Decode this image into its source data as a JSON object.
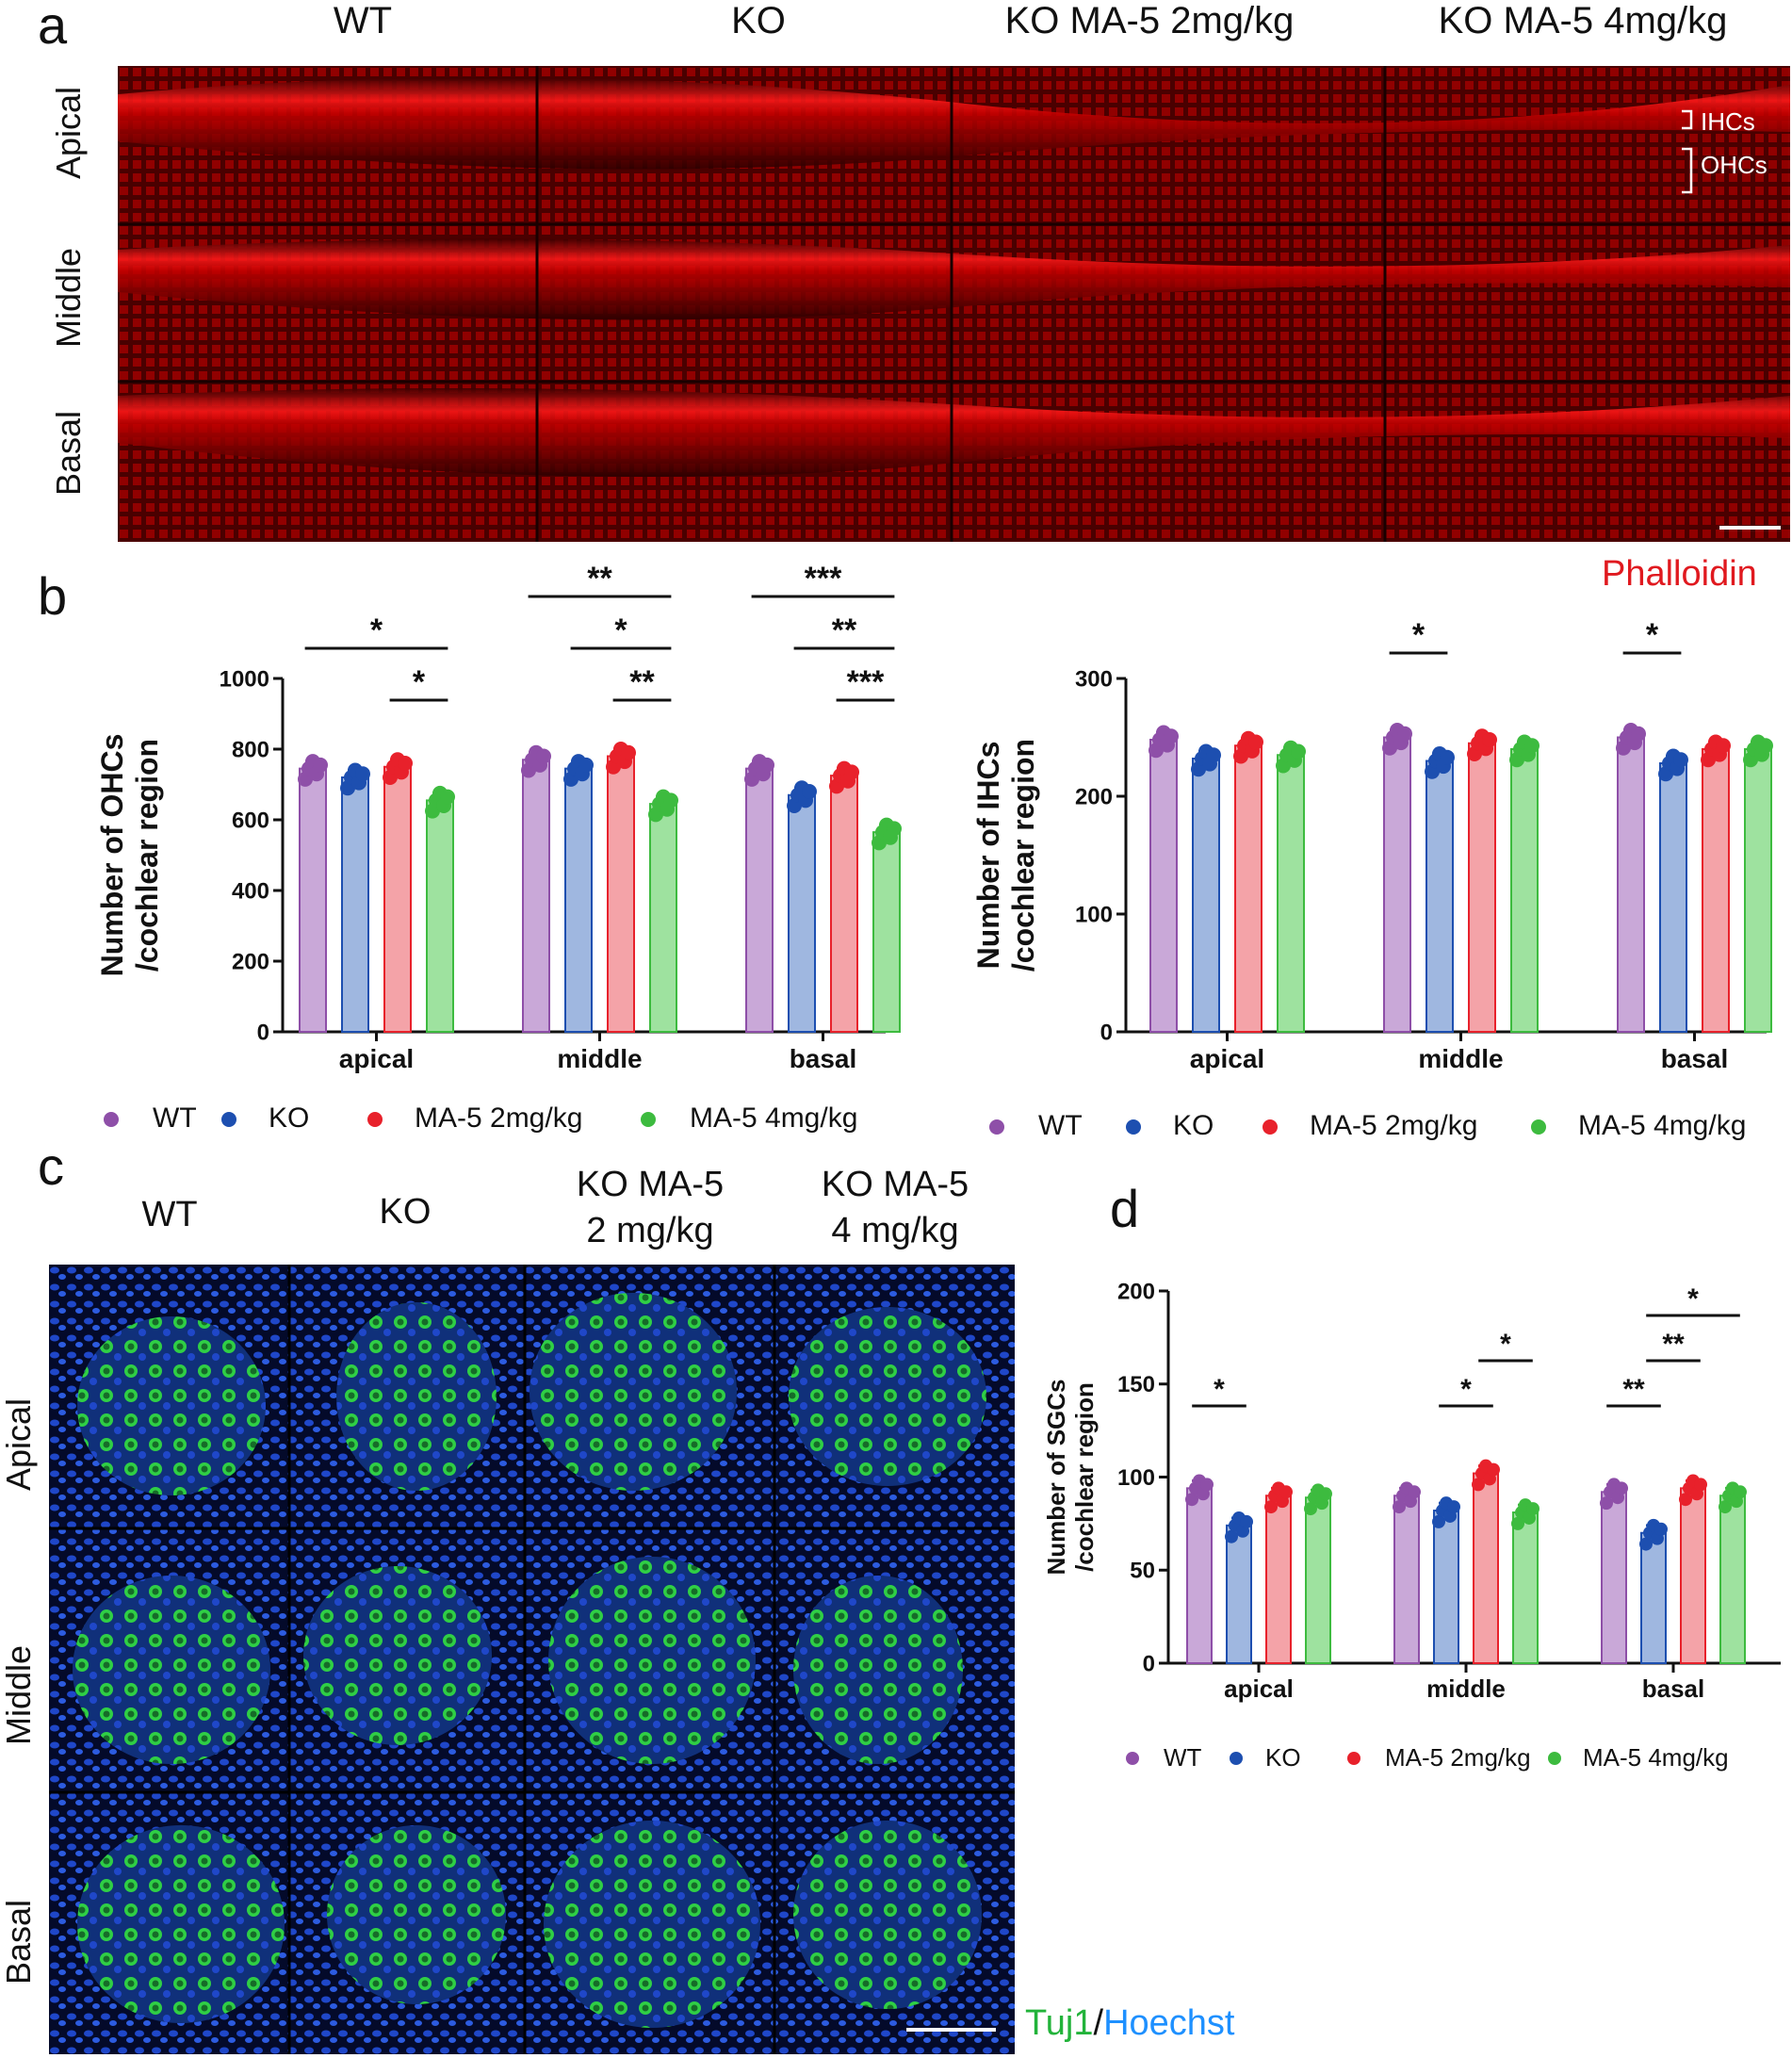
{
  "colors": {
    "WT": "#8e4fa8",
    "KO": "#1d4fb0",
    "MA5_2": "#e8212b",
    "MA5_4": "#3dbb3f",
    "WT_bar": "#c9a8d8",
    "KO_bar": "#9fb7e0",
    "MA5_2_bar": "#f4a3a8",
    "MA5_4_bar": "#9ee29f",
    "phalloidin": "#e0191f",
    "tuj1": "#22b33a",
    "hoechst": "#1e90ff"
  },
  "panel_a": {
    "letter": "a",
    "columns": [
      "WT",
      "KO",
      "KO MA-5 2mg/kg",
      "KO MA-5 4mg/kg"
    ],
    "rows": [
      "Apical",
      "Middle",
      "Basal"
    ],
    "annotations": [
      "IHCs",
      "OHCs"
    ],
    "stain": "Phalloidin"
  },
  "panel_b": {
    "letter": "b",
    "legend_left": [
      "WT",
      "KO",
      "MA-5 2mg/kg",
      "MA-5 4mg/kg"
    ],
    "legend_right": [
      "WT",
      "KO",
      "MA-5 2mg/kg",
      "MA-5 4mg/kg"
    ]
  },
  "panel_c": {
    "letter": "c",
    "columns": [
      "WT",
      "KO",
      "KO MA-5",
      "KO MA-5"
    ],
    "columns_line2": [
      "",
      "",
      "2 mg/kg",
      "4 mg/kg"
    ],
    "rows": [
      "Apical",
      "Middle",
      "Basal"
    ],
    "stain_green": "Tuj1",
    "stain_sep": "/",
    "stain_blue": "Hoechst"
  },
  "panel_d": {
    "letter": "d",
    "legend": [
      "WT",
      "KO",
      "MA-5 2mg/kg",
      "MA-5 4mg/kg"
    ]
  },
  "chart_data": [
    {
      "id": "ohc",
      "type": "bar",
      "ylabel": [
        "Number of OHCs",
        "/cochlear region"
      ],
      "ylim": [
        0,
        1000
      ],
      "yticks": [
        0,
        200,
        400,
        600,
        800,
        1000
      ],
      "categories": [
        "apical",
        "middle",
        "basal"
      ],
      "series": [
        {
          "name": "WT",
          "values": [
            745,
            770,
            745
          ]
        },
        {
          "name": "KO",
          "values": [
            720,
            745,
            670
          ]
        },
        {
          "name": "MA-5 2mg/kg",
          "values": [
            750,
            780,
            725
          ]
        },
        {
          "name": "MA-5 4mg/kg",
          "values": [
            655,
            645,
            565
          ]
        }
      ],
      "significance": [
        {
          "group": 0,
          "from": 2,
          "to": 3,
          "label": "*"
        },
        {
          "group": 0,
          "from": 0,
          "to": 3,
          "label": "*"
        },
        {
          "group": 1,
          "from": 2,
          "to": 3,
          "label": "**"
        },
        {
          "group": 1,
          "from": 1,
          "to": 3,
          "label": "*"
        },
        {
          "group": 1,
          "from": 0,
          "to": 3,
          "label": "**"
        },
        {
          "group": 2,
          "from": 2,
          "to": 3,
          "label": "***"
        },
        {
          "group": 2,
          "from": 1,
          "to": 3,
          "label": "**"
        },
        {
          "group": 2,
          "from": 0,
          "to": 3,
          "label": "***"
        }
      ]
    },
    {
      "id": "ihc",
      "type": "bar",
      "ylabel": [
        "Number of IHCs",
        "/cochlear region"
      ],
      "ylim": [
        0,
        300
      ],
      "yticks": [
        0,
        100,
        200,
        300
      ],
      "categories": [
        "apical",
        "middle",
        "basal"
      ],
      "series": [
        {
          "name": "WT",
          "values": [
            248,
            250,
            250
          ]
        },
        {
          "name": "KO",
          "values": [
            232,
            230,
            228
          ]
        },
        {
          "name": "MA-5 2mg/kg",
          "values": [
            243,
            245,
            240
          ]
        },
        {
          "name": "MA-5 4mg/kg",
          "values": [
            235,
            240,
            240
          ]
        }
      ],
      "significance": [
        {
          "group": 1,
          "from": 0,
          "to": 1,
          "label": "*"
        },
        {
          "group": 2,
          "from": 0,
          "to": 1,
          "label": "*"
        }
      ]
    },
    {
      "id": "sgc",
      "type": "bar",
      "ylabel": [
        "Number of SGCs",
        "/cochlear region"
      ],
      "ylim": [
        0,
        200
      ],
      "yticks": [
        0,
        50,
        100,
        150,
        200
      ],
      "categories": [
        "apical",
        "middle",
        "basal"
      ],
      "series": [
        {
          "name": "WT",
          "values": [
            94,
            90,
            92
          ]
        },
        {
          "name": "KO",
          "values": [
            74,
            82,
            70
          ]
        },
        {
          "name": "MA-5 2mg/kg",
          "values": [
            90,
            102,
            94
          ]
        },
        {
          "name": "MA-5 4mg/kg",
          "values": [
            89,
            81,
            90
          ]
        }
      ],
      "significance": [
        {
          "group": 0,
          "from": 0,
          "to": 1,
          "label": "*"
        },
        {
          "group": 1,
          "from": 1,
          "to": 2,
          "label": "*"
        },
        {
          "group": 1,
          "from": 2,
          "to": 3,
          "label": "*"
        },
        {
          "group": 2,
          "from": 0,
          "to": 1,
          "label": "**"
        },
        {
          "group": 2,
          "from": 1,
          "to": 2,
          "label": "**"
        },
        {
          "group": 2,
          "from": 1,
          "to": 3,
          "label": "*"
        }
      ]
    }
  ]
}
